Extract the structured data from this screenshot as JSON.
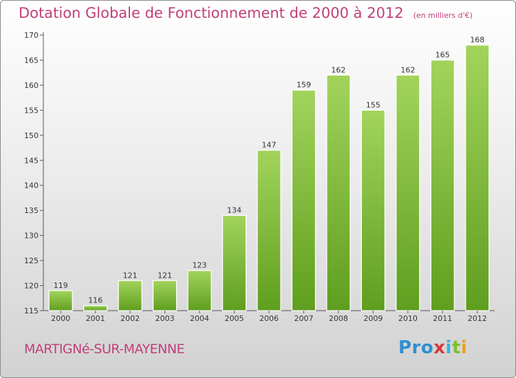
{
  "title": "Dotation Globale de Fonctionnement de 2000 à 2012",
  "subtitle": "(en milliers d'€)",
  "place": "MARTIGNé-SUR-MAYENNE",
  "logo": {
    "p1": "Pro",
    "p2": "x",
    "p3": "i",
    "p4": "t",
    "p5": "i"
  },
  "colors": {
    "title": "#c0407a",
    "bar_top": "#a2d45c",
    "bar_bottom": "#5f9e1e"
  },
  "chart_data": {
    "type": "bar",
    "categories": [
      "2000",
      "2001",
      "2002",
      "2003",
      "2004",
      "2005",
      "2006",
      "2007",
      "2008",
      "2009",
      "2010",
      "2011",
      "2012"
    ],
    "values": [
      119,
      116,
      121,
      121,
      123,
      134,
      147,
      159,
      162,
      155,
      162,
      165,
      168
    ],
    "ylim": [
      115,
      170
    ],
    "yticks": [
      115,
      120,
      125,
      130,
      135,
      140,
      145,
      150,
      155,
      160,
      165,
      170
    ],
    "grid": false,
    "data_labels": true
  }
}
